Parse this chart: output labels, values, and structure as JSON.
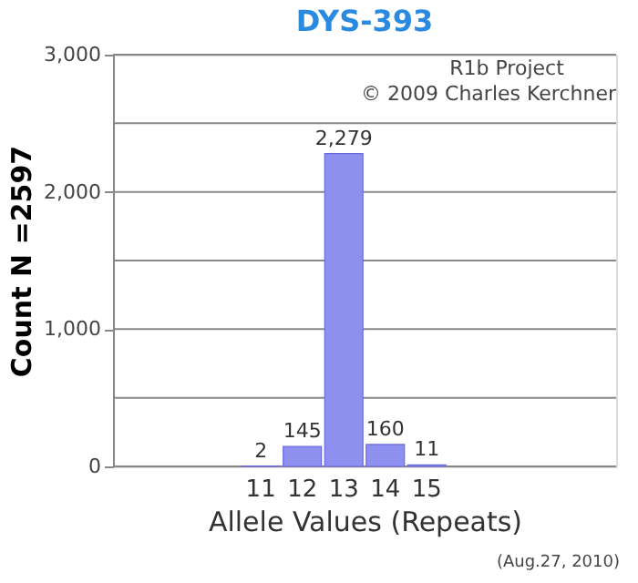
{
  "chart_data": {
    "type": "bar",
    "title": "DYS-393",
    "xlabel": "Allele Values (Repeats)",
    "ylabel": "Count N =2597",
    "categories": [
      null,
      null,
      null,
      "11",
      "12",
      "13",
      "14",
      "15",
      null,
      null,
      null,
      null
    ],
    "values": [
      null,
      null,
      null,
      2,
      145,
      2279,
      160,
      11,
      null,
      null,
      null,
      null
    ],
    "color": "#8f8ff0",
    "value_labels": [
      null,
      null,
      null,
      "2",
      "145",
      "2,279",
      "160",
      "11",
      null,
      null,
      null,
      null
    ],
    "ylim": [
      0,
      3000
    ],
    "yticks": [
      0,
      {
        "value": 500,
        "label": null
      },
      {
        "value": 1000,
        "label": "1,000"
      },
      {
        "value": 1500,
        "label": null
      },
      {
        "value": 2000,
        "label": "2,000"
      },
      {
        "value": 2500,
        "label": null
      },
      {
        "value": 3000,
        "label": "3,000"
      }
    ],
    "grid": "y",
    "annotations": [
      "R1b Project",
      "© 2009 Charles Kerchner",
      "(Aug.27, 2010)"
    ]
  }
}
